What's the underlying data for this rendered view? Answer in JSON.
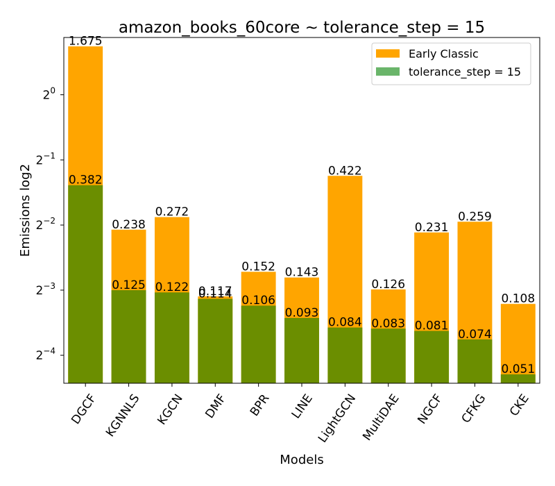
{
  "chart_data": {
    "type": "bar",
    "title": "amazon_books_60core ~ tolerance_step = 15",
    "xlabel": "Models",
    "ylabel": "Emissions log2",
    "yscale": "log2",
    "ylim": [
      0.0464,
      1.84
    ],
    "yticks": [
      {
        "value": 1,
        "base": "2",
        "exp": "0"
      },
      {
        "value": 0.5,
        "base": "2",
        "exp": "−1"
      },
      {
        "value": 0.25,
        "base": "2",
        "exp": "−2"
      },
      {
        "value": 0.125,
        "base": "2",
        "exp": "−3"
      },
      {
        "value": 0.0625,
        "base": "2",
        "exp": "−4"
      }
    ],
    "categories": [
      "DGCF",
      "KGNNLS",
      "KGCN",
      "DMF",
      "BPR",
      "LINE",
      "LightGCN",
      "MultiDAE",
      "NGCF",
      "CFKG",
      "CKE"
    ],
    "series": [
      {
        "name": "Early Classic",
        "color": "#ffa500",
        "values": [
          1.675,
          0.238,
          0.272,
          0.117,
          0.152,
          0.143,
          0.422,
          0.126,
          0.231,
          0.259,
          0.108
        ],
        "labels": [
          "1.675",
          "0.238",
          "0.272",
          "0.117",
          "0.152",
          "0.143",
          "0.422",
          "0.126",
          "0.231",
          "0.259",
          "0.108"
        ]
      },
      {
        "name": "tolerance_step = 15",
        "color": "#6b8e00",
        "legend_color": "#6ab56a",
        "values": [
          0.382,
          0.125,
          0.122,
          0.114,
          0.106,
          0.093,
          0.084,
          0.083,
          0.081,
          0.074,
          0.051
        ],
        "labels": [
          "0.382",
          "0.125",
          "0.122",
          "0.114",
          "0.106",
          "0.093",
          "0.084",
          "0.083",
          "0.081",
          "0.074",
          "0.051"
        ]
      }
    ],
    "legend_position": "top-right",
    "grid": false
  }
}
